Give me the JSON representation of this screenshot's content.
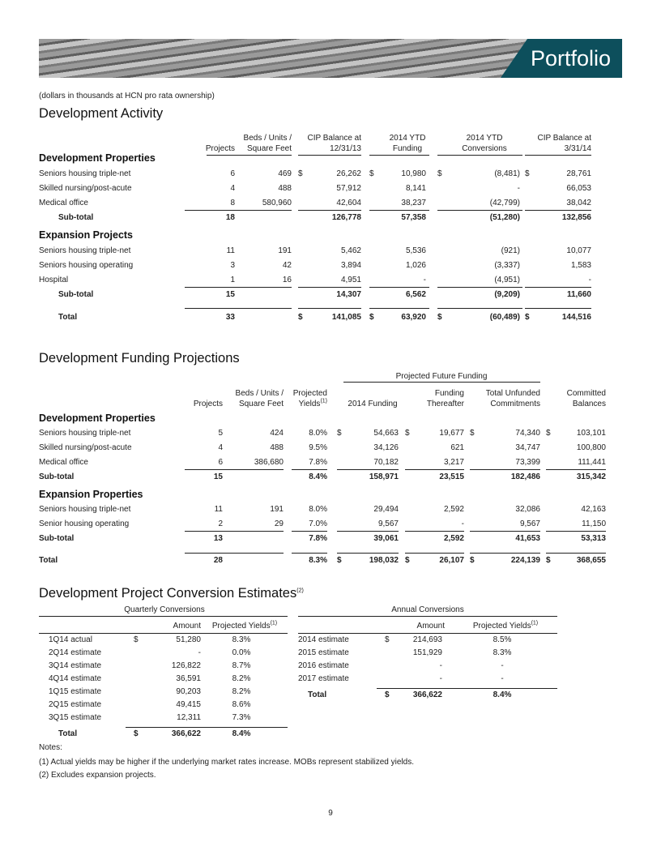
{
  "header": {
    "title": "Portfolio"
  },
  "note_top": "(dollars in thousands at HCN pro rata ownership)",
  "activity": {
    "title": "Development Activity",
    "headers": [
      {
        "lines": [
          "Projects"
        ]
      },
      {
        "lines": [
          "Beds / Units /",
          "Square Feet"
        ]
      },
      {
        "lines": [
          "CIP Balance at",
          "12/31/13"
        ]
      },
      {
        "lines": [
          "2014 YTD",
          "Funding"
        ]
      },
      {
        "lines": [
          "2014 YTD",
          "Conversions"
        ]
      },
      {
        "lines": [
          "CIP Balance at",
          "3/31/14"
        ]
      }
    ],
    "sections": [
      {
        "title": "Development Properties",
        "rows": [
          [
            "Seniors housing triple-net",
            "6",
            "469",
            "$",
            "26,262",
            "$",
            "10,980",
            "$",
            "(8,481)",
            "$",
            "28,761"
          ],
          [
            "Skilled nursing/post-acute",
            "4",
            "488",
            null,
            "57,912",
            null,
            "8,141",
            null,
            "-",
            null,
            "66,053"
          ],
          [
            "Medical office",
            "8",
            "580,960",
            null,
            "42,604",
            null,
            "38,237",
            null,
            "(42,799)",
            null,
            "38,042"
          ]
        ],
        "subtotal": [
          "Sub-total",
          "18",
          null,
          null,
          "126,778",
          null,
          "57,358",
          null,
          "(51,280)",
          null,
          "132,856"
        ]
      },
      {
        "title": "Expansion Projects",
        "rows": [
          [
            "Seniors housing triple-net",
            "11",
            "191",
            null,
            "5,462",
            null,
            "5,536",
            null,
            "(921)",
            null,
            "10,077"
          ],
          [
            "Seniors housing operating",
            "3",
            "42",
            null,
            "3,894",
            null,
            "1,026",
            null,
            "(3,337)",
            null,
            "1,583"
          ],
          [
            "Hospital",
            "1",
            "16",
            null,
            "4,951",
            null,
            "-",
            null,
            "(4,951)",
            null,
            "-"
          ]
        ],
        "subtotal": [
          "Sub-total",
          "15",
          null,
          null,
          "14,307",
          null,
          "6,562",
          null,
          "(9,209)",
          null,
          "11,660"
        ]
      }
    ],
    "total": [
      "Total",
      "33",
      null,
      "$",
      "141,085",
      "$",
      "63,920",
      "$",
      "(60,489)",
      "$",
      "144,516"
    ]
  },
  "funding": {
    "title": "Development Funding Projections",
    "group_header": "Projected Future Funding",
    "headers": [
      {
        "lines": [
          "Projects"
        ]
      },
      {
        "lines": [
          "Beds / Units /",
          "Square Feet"
        ]
      },
      {
        "lines": [
          "Projected",
          "Yields"
        ],
        "sup": "(1)"
      },
      {
        "lines": [
          "2014 Funding"
        ]
      },
      {
        "lines": [
          "Funding",
          "Thereafter"
        ]
      },
      {
        "lines": [
          "Total Unfunded",
          "Commitments"
        ]
      },
      {
        "lines": [
          "Committed",
          "Balances"
        ]
      }
    ],
    "sections": [
      {
        "title": "Development Properties",
        "rows": [
          [
            "Seniors housing triple-net",
            "5",
            "424",
            "8.0%",
            "$",
            "54,663",
            "$",
            "19,677",
            "$",
            "74,340",
            "$",
            "103,101"
          ],
          [
            "Skilled nursing/post-acute",
            "4",
            "488",
            "9.5%",
            null,
            "34,126",
            null,
            "621",
            null,
            "34,747",
            null,
            "100,800"
          ],
          [
            "Medical office",
            "6",
            "386,680",
            "7.8%",
            null,
            "70,182",
            null,
            "3,217",
            null,
            "73,399",
            null,
            "111,441"
          ]
        ],
        "subtotal": [
          "Sub-total",
          "15",
          null,
          "8.4%",
          null,
          "158,971",
          null,
          "23,515",
          null,
          "182,486",
          null,
          "315,342"
        ]
      },
      {
        "title": "Expansion Properties",
        "rows": [
          [
            "Seniors housing triple-net",
            "11",
            "191",
            "8.0%",
            null,
            "29,494",
            null,
            "2,592",
            null,
            "32,086",
            null,
            "42,163"
          ],
          [
            "Senior housing operating",
            "2",
            "29",
            "7.0%",
            null,
            "9,567",
            null,
            "-",
            null,
            "9,567",
            null,
            "11,150"
          ]
        ],
        "subtotal": [
          "Sub-total",
          "13",
          null,
          "7.8%",
          null,
          "39,061",
          null,
          "2,592",
          null,
          "41,653",
          null,
          "53,313"
        ]
      }
    ],
    "total": [
      "Total",
      "28",
      null,
      "8.3%",
      "$",
      "198,032",
      "$",
      "26,107",
      "$",
      "224,139",
      "$",
      "368,655"
    ]
  },
  "conversion": {
    "title": "Development Project Conversion Estimates",
    "title_sup": "(2)",
    "quarterly": {
      "title": "Quarterly Conversions",
      "headers": [
        {
          "text": "Amount"
        },
        {
          "text": "Projected Yields",
          "sup": "(1)"
        }
      ],
      "rows": [
        [
          "1Q14 actual",
          "$",
          "51,280",
          "8.3%"
        ],
        [
          "2Q14 estimate",
          null,
          "-",
          "0.0%"
        ],
        [
          "3Q14 estimate",
          null,
          "126,822",
          "8.7%"
        ],
        [
          "4Q14 estimate",
          null,
          "36,591",
          "8.2%"
        ],
        [
          "1Q15 estimate",
          null,
          "90,203",
          "8.2%"
        ],
        [
          "2Q15 estimate",
          null,
          "49,415",
          "8.6%"
        ],
        [
          "3Q15 estimate",
          null,
          "12,311",
          "7.3%"
        ]
      ],
      "total": [
        "Total",
        "$",
        "366,622",
        "8.4%"
      ]
    },
    "annual": {
      "title": "Annual Conversions",
      "headers": [
        {
          "text": "Amount"
        },
        {
          "text": "Projected Yields",
          "sup": "(1)"
        }
      ],
      "rows": [
        [
          "2014 estimate",
          "$",
          "214,693",
          "8.5%"
        ],
        [
          "2015 estimate",
          null,
          "151,929",
          "8.3%"
        ],
        [
          "2016 estimate",
          null,
          "-",
          "-"
        ],
        [
          "2017 estimate",
          null,
          "-",
          "-"
        ]
      ],
      "total": [
        "Total",
        "$",
        "366,622",
        "8.4%"
      ]
    }
  },
  "notes": {
    "title": "Notes:",
    "items": [
      "(1) Actual yields may be higher if the underlying market rates increase.  MOBs represent stabilized yields.",
      "(2) Excludes expansion projects."
    ]
  },
  "page_number": "9"
}
